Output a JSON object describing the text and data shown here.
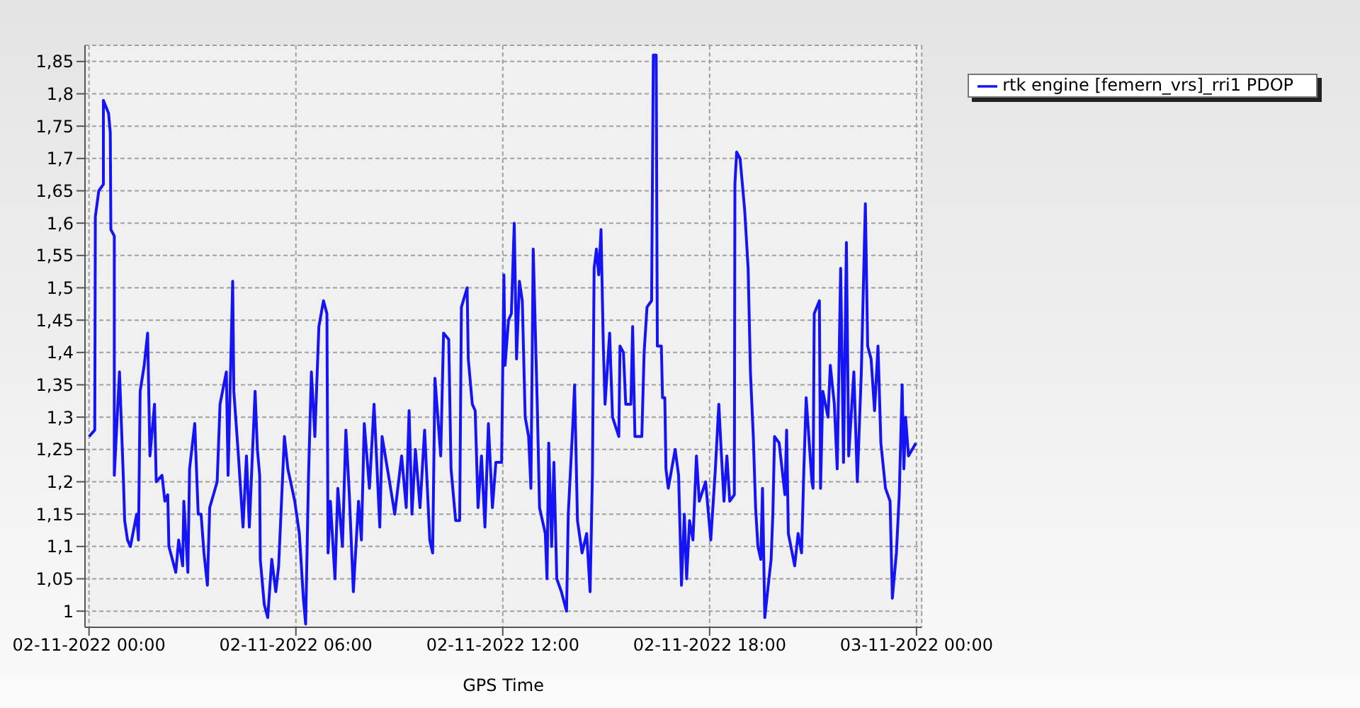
{
  "chart_data": {
    "type": "line",
    "xlabel": "GPS Time",
    "x": [
      "2022-11-02T00:00",
      "2022-11-02T00:10",
      "2022-11-02T00:11",
      "2022-11-02T00:17",
      "2022-11-02T00:25",
      "2022-11-02T00:25",
      "2022-11-02T00:34",
      "2022-11-02T00:37",
      "2022-11-02T00:38",
      "2022-11-02T00:44",
      "2022-11-02T00:44",
      "2022-11-02T00:53",
      "2022-11-02T01:00",
      "2022-11-02T01:02",
      "2022-11-02T01:07",
      "2022-11-02T01:12",
      "2022-11-02T01:23",
      "2022-11-02T01:26",
      "2022-11-02T01:29",
      "2022-11-02T01:36",
      "2022-11-02T01:42",
      "2022-11-02T01:46",
      "2022-11-02T01:54",
      "2022-11-02T01:57",
      "2022-11-02T02:07",
      "2022-11-02T02:12",
      "2022-11-02T02:17",
      "2022-11-02T02:19",
      "2022-11-02T02:31",
      "2022-11-02T02:36",
      "2022-11-02T02:43",
      "2022-11-02T02:45",
      "2022-11-02T02:52",
      "2022-11-02T02:55",
      "2022-11-02T03:04",
      "2022-11-02T03:10",
      "2022-11-02T03:15",
      "2022-11-02T03:20",
      "2022-11-02T03:26",
      "2022-11-02T03:30",
      "2022-11-02T03:43",
      "2022-11-02T03:48",
      "2022-11-02T03:59",
      "2022-11-02T04:02",
      "2022-11-02T04:10",
      "2022-11-02T04:12",
      "2022-11-02T04:20",
      "2022-11-02T04:28",
      "2022-11-02T04:34",
      "2022-11-02T04:39",
      "2022-11-02T04:49",
      "2022-11-02T04:53",
      "2022-11-02T04:57",
      "2022-11-02T04:58",
      "2022-11-02T05:05",
      "2022-11-02T05:11",
      "2022-11-02T05:18",
      "2022-11-02T05:25",
      "2022-11-02T05:30",
      "2022-11-02T05:34",
      "2022-11-02T05:40",
      "2022-11-02T05:46",
      "2022-11-02T05:58",
      "2022-11-02T06:06",
      "2022-11-02T06:13",
      "2022-11-02T06:17",
      "2022-11-02T06:22",
      "2022-11-02T06:27",
      "2022-11-02T06:33",
      "2022-11-02T06:40",
      "2022-11-02T06:48",
      "2022-11-02T06:54",
      "2022-11-02T06:56",
      "2022-11-02T07:00",
      "2022-11-02T07:08",
      "2022-11-02T07:13",
      "2022-11-02T07:21",
      "2022-11-02T07:27",
      "2022-11-02T07:33",
      "2022-11-02T07:40",
      "2022-11-02T07:49",
      "2022-11-02T07:54",
      "2022-11-02T07:59",
      "2022-11-02T08:08",
      "2022-11-02T08:16",
      "2022-11-02T08:26",
      "2022-11-02T08:30",
      "2022-11-02T08:43",
      "2022-11-02T08:52",
      "2022-11-02T09:04",
      "2022-11-02T09:12",
      "2022-11-02T09:17",
      "2022-11-02T09:22",
      "2022-11-02T09:28",
      "2022-11-02T09:36",
      "2022-11-02T09:44",
      "2022-11-02T09:53",
      "2022-11-02T09:58",
      "2022-11-02T10:02",
      "2022-11-02T10:12",
      "2022-11-02T10:17",
      "2022-11-02T10:26",
      "2022-11-02T10:30",
      "2022-11-02T10:38",
      "2022-11-02T10:45",
      "2022-11-02T10:48",
      "2022-11-02T10:58",
      "2022-11-02T11:00",
      "2022-11-02T11:07",
      "2022-11-02T11:12",
      "2022-11-02T11:17",
      "2022-11-02T11:23",
      "2022-11-02T11:29",
      "2022-11-02T11:35",
      "2022-11-02T11:42",
      "2022-11-02T11:48",
      "2022-11-02T11:58",
      "2022-11-02T12:02",
      "2022-11-02T12:04",
      "2022-11-02T12:10",
      "2022-11-02T12:15",
      "2022-11-02T12:20",
      "2022-11-02T12:24",
      "2022-11-02T12:29",
      "2022-11-02T12:34",
      "2022-11-02T12:39",
      "2022-11-02T12:45",
      "2022-11-02T12:49",
      "2022-11-02T12:53",
      "2022-11-02T13:00",
      "2022-11-02T13:04",
      "2022-11-02T13:14",
      "2022-11-02T13:17",
      "2022-11-02T13:20",
      "2022-11-02T13:25",
      "2022-11-02T13:29",
      "2022-11-02T13:34",
      "2022-11-02T13:42",
      "2022-11-02T13:51",
      "2022-11-02T13:54",
      "2022-11-02T14:02",
      "2022-11-02T14:05",
      "2022-11-02T14:10",
      "2022-11-02T14:18",
      "2022-11-02T14:26",
      "2022-11-02T14:32",
      "2022-11-02T14:36",
      "2022-11-02T14:39",
      "2022-11-02T14:43",
      "2022-11-02T14:47",
      "2022-11-02T14:51",
      "2022-11-02T14:55",
      "2022-11-02T14:58",
      "2022-11-02T15:06",
      "2022-11-02T15:11",
      "2022-11-02T15:22",
      "2022-11-02T15:24",
      "2022-11-02T15:30",
      "2022-11-02T15:34",
      "2022-11-02T15:43",
      "2022-11-02T15:46",
      "2022-11-02T15:50",
      "2022-11-02T16:02",
      "2022-11-02T16:06",
      "2022-11-02T16:11",
      "2022-11-02T16:19",
      "2022-11-02T16:22",
      "2022-11-02T16:27",
      "2022-11-02T16:29",
      "2022-11-02T16:36",
      "2022-11-02T16:38",
      "2022-11-02T16:42",
      "2022-11-02T16:44",
      "2022-11-02T16:48",
      "2022-11-02T17:00",
      "2022-11-02T17:06",
      "2022-11-02T17:11",
      "2022-11-02T17:16",
      "2022-11-02T17:20",
      "2022-11-02T17:25",
      "2022-11-02T17:31",
      "2022-11-02T17:37",
      "2022-11-02T17:42",
      "2022-11-02T17:53",
      "2022-11-02T18:02",
      "2022-11-02T18:10",
      "2022-11-02T18:16",
      "2022-11-02T18:20",
      "2022-11-02T18:25",
      "2022-11-02T18:30",
      "2022-11-02T18:35",
      "2022-11-02T18:43",
      "2022-11-02T18:44",
      "2022-11-02T18:47",
      "2022-11-02T18:53",
      "2022-11-02T19:01",
      "2022-11-02T19:07",
      "2022-11-02T19:11",
      "2022-11-02T19:16",
      "2022-11-02T19:20",
      "2022-11-02T19:24",
      "2022-11-02T19:29",
      "2022-11-02T19:32",
      "2022-11-02T19:36",
      "2022-11-02T19:42",
      "2022-11-02T19:47",
      "2022-11-02T19:50",
      "2022-11-02T19:53",
      "2022-11-02T20:01",
      "2022-11-02T20:11",
      "2022-11-02T20:14",
      "2022-11-02T20:17",
      "2022-11-02T20:28",
      "2022-11-02T20:34",
      "2022-11-02T20:40",
      "2022-11-02T20:44",
      "2022-11-02T20:48",
      "2022-11-02T20:58",
      "2022-11-02T21:00",
      "2022-11-02T21:02",
      "2022-11-02T21:11",
      "2022-11-02T21:13",
      "2022-11-02T21:17",
      "2022-11-02T21:26",
      "2022-11-02T21:30",
      "2022-11-02T21:37",
      "2022-11-02T21:42",
      "2022-11-02T21:48",
      "2022-11-02T21:53",
      "2022-11-02T21:58",
      "2022-11-02T22:02",
      "2022-11-02T22:11",
      "2022-11-02T22:17",
      "2022-11-02T22:24",
      "2022-11-02T22:31",
      "2022-11-02T22:35",
      "2022-11-02T22:41",
      "2022-11-02T22:47",
      "2022-11-02T22:53",
      "2022-11-02T22:58",
      "2022-11-02T23:06",
      "2022-11-02T23:14",
      "2022-11-02T23:18",
      "2022-11-02T23:25",
      "2022-11-02T23:30",
      "2022-11-02T23:35",
      "2022-11-02T23:38",
      "2022-11-02T23:41",
      "2022-11-02T23:46",
      "2022-11-02T23:59"
    ],
    "series": [
      {
        "name": "rtk engine [femern_vrs]_rri1 PDOP",
        "color": "#1414f5",
        "values": [
          1.27,
          1.28,
          1.61,
          1.65,
          1.66,
          1.79,
          1.77,
          1.74,
          1.59,
          1.58,
          1.21,
          1.37,
          1.2,
          1.14,
          1.11,
          1.1,
          1.15,
          1.11,
          1.34,
          1.38,
          1.43,
          1.24,
          1.32,
          1.2,
          1.21,
          1.17,
          1.18,
          1.1,
          1.06,
          1.11,
          1.07,
          1.17,
          1.06,
          1.22,
          1.29,
          1.15,
          1.15,
          1.09,
          1.04,
          1.16,
          1.2,
          1.32,
          1.37,
          1.21,
          1.51,
          1.34,
          1.24,
          1.13,
          1.24,
          1.13,
          1.34,
          1.25,
          1.21,
          1.08,
          1.01,
          0.99,
          1.08,
          1.03,
          1.07,
          1.15,
          1.27,
          1.22,
          1.17,
          1.12,
          1.02,
          0.98,
          1.21,
          1.37,
          1.27,
          1.44,
          1.48,
          1.46,
          1.09,
          1.17,
          1.05,
          1.19,
          1.1,
          1.28,
          1.18,
          1.03,
          1.17,
          1.11,
          1.29,
          1.19,
          1.32,
          1.13,
          1.27,
          1.2,
          1.15,
          1.24,
          1.16,
          1.31,
          1.15,
          1.25,
          1.16,
          1.28,
          1.11,
          1.09,
          1.36,
          1.24,
          1.43,
          1.42,
          1.22,
          1.14,
          1.14,
          1.47,
          1.5,
          1.39,
          1.32,
          1.31,
          1.16,
          1.24,
          1.13,
          1.29,
          1.16,
          1.23,
          1.23,
          1.52,
          1.38,
          1.45,
          1.46,
          1.6,
          1.39,
          1.51,
          1.48,
          1.3,
          1.27,
          1.19,
          1.56,
          1.32,
          1.16,
          1.12,
          1.05,
          1.26,
          1.1,
          1.23,
          1.05,
          1.03,
          1.0,
          1.15,
          1.29,
          1.35,
          1.14,
          1.09,
          1.12,
          1.03,
          1.21,
          1.53,
          1.56,
          1.52,
          1.59,
          1.41,
          1.32,
          1.43,
          1.3,
          1.27,
          1.41,
          1.4,
          1.32,
          1.32,
          1.44,
          1.27,
          1.27,
          1.4,
          1.47,
          1.48,
          1.86,
          1.86,
          1.41,
          1.41,
          1.33,
          1.33,
          1.22,
          1.19,
          1.25,
          1.21,
          1.04,
          1.15,
          1.05,
          1.14,
          1.11,
          1.24,
          1.17,
          1.2,
          1.11,
          1.22,
          1.32,
          1.25,
          1.17,
          1.24,
          1.17,
          1.18,
          1.66,
          1.71,
          1.7,
          1.62,
          1.53,
          1.37,
          1.27,
          1.16,
          1.1,
          1.08,
          1.19,
          0.99,
          1.04,
          1.08,
          1.15,
          1.27,
          1.26,
          1.18,
          1.28,
          1.12,
          1.07,
          1.12,
          1.09,
          1.22,
          1.33,
          1.2,
          1.19,
          1.46,
          1.48,
          1.19,
          1.34,
          1.3,
          1.38,
          1.32,
          1.22,
          1.53,
          1.23,
          1.57,
          1.24,
          1.37,
          1.2,
          1.37,
          1.63,
          1.41,
          1.39,
          1.31,
          1.41,
          1.26,
          1.19,
          1.17,
          1.02,
          1.09,
          1.18,
          1.35,
          1.22,
          1.3,
          1.24,
          1.26
        ]
      }
    ],
    "xlim": [
      "2022-11-01T23:53",
      "2022-11-03T00:09"
    ],
    "xticks": [
      {
        "value": "2022-11-02T00:00",
        "label": "02-11-2022 00:00"
      },
      {
        "value": "2022-11-02T06:00",
        "label": "02-11-2022 06:00"
      },
      {
        "value": "2022-11-02T12:00",
        "label": "02-11-2022 12:00"
      },
      {
        "value": "2022-11-02T18:00",
        "label": "02-11-2022 18:00"
      },
      {
        "value": "2022-11-03T00:00",
        "label": "03-11-2022 00:00"
      }
    ],
    "ylim": [
      0.975,
      1.875
    ],
    "yticks": [
      {
        "value": 1,
        "label": "1"
      },
      {
        "value": 1.05,
        "label": "1,05"
      },
      {
        "value": 1.1,
        "label": "1,1"
      },
      {
        "value": 1.15,
        "label": "1,15"
      },
      {
        "value": 1.2,
        "label": "1,2"
      },
      {
        "value": 1.25,
        "label": "1,25"
      },
      {
        "value": 1.3,
        "label": "1,3"
      },
      {
        "value": 1.35,
        "label": "1,35"
      },
      {
        "value": 1.4,
        "label": "1,4"
      },
      {
        "value": 1.45,
        "label": "1,45"
      },
      {
        "value": 1.5,
        "label": "1,5"
      },
      {
        "value": 1.55,
        "label": "1,55"
      },
      {
        "value": 1.6,
        "label": "1,6"
      },
      {
        "value": 1.65,
        "label": "1,65"
      },
      {
        "value": 1.7,
        "label": "1,7"
      },
      {
        "value": 1.75,
        "label": "1,75"
      },
      {
        "value": 1.8,
        "label": "1,8"
      },
      {
        "value": 1.85,
        "label": "1,85"
      }
    ],
    "grid": true,
    "legend": "top right",
    "line_style": "solid"
  }
}
